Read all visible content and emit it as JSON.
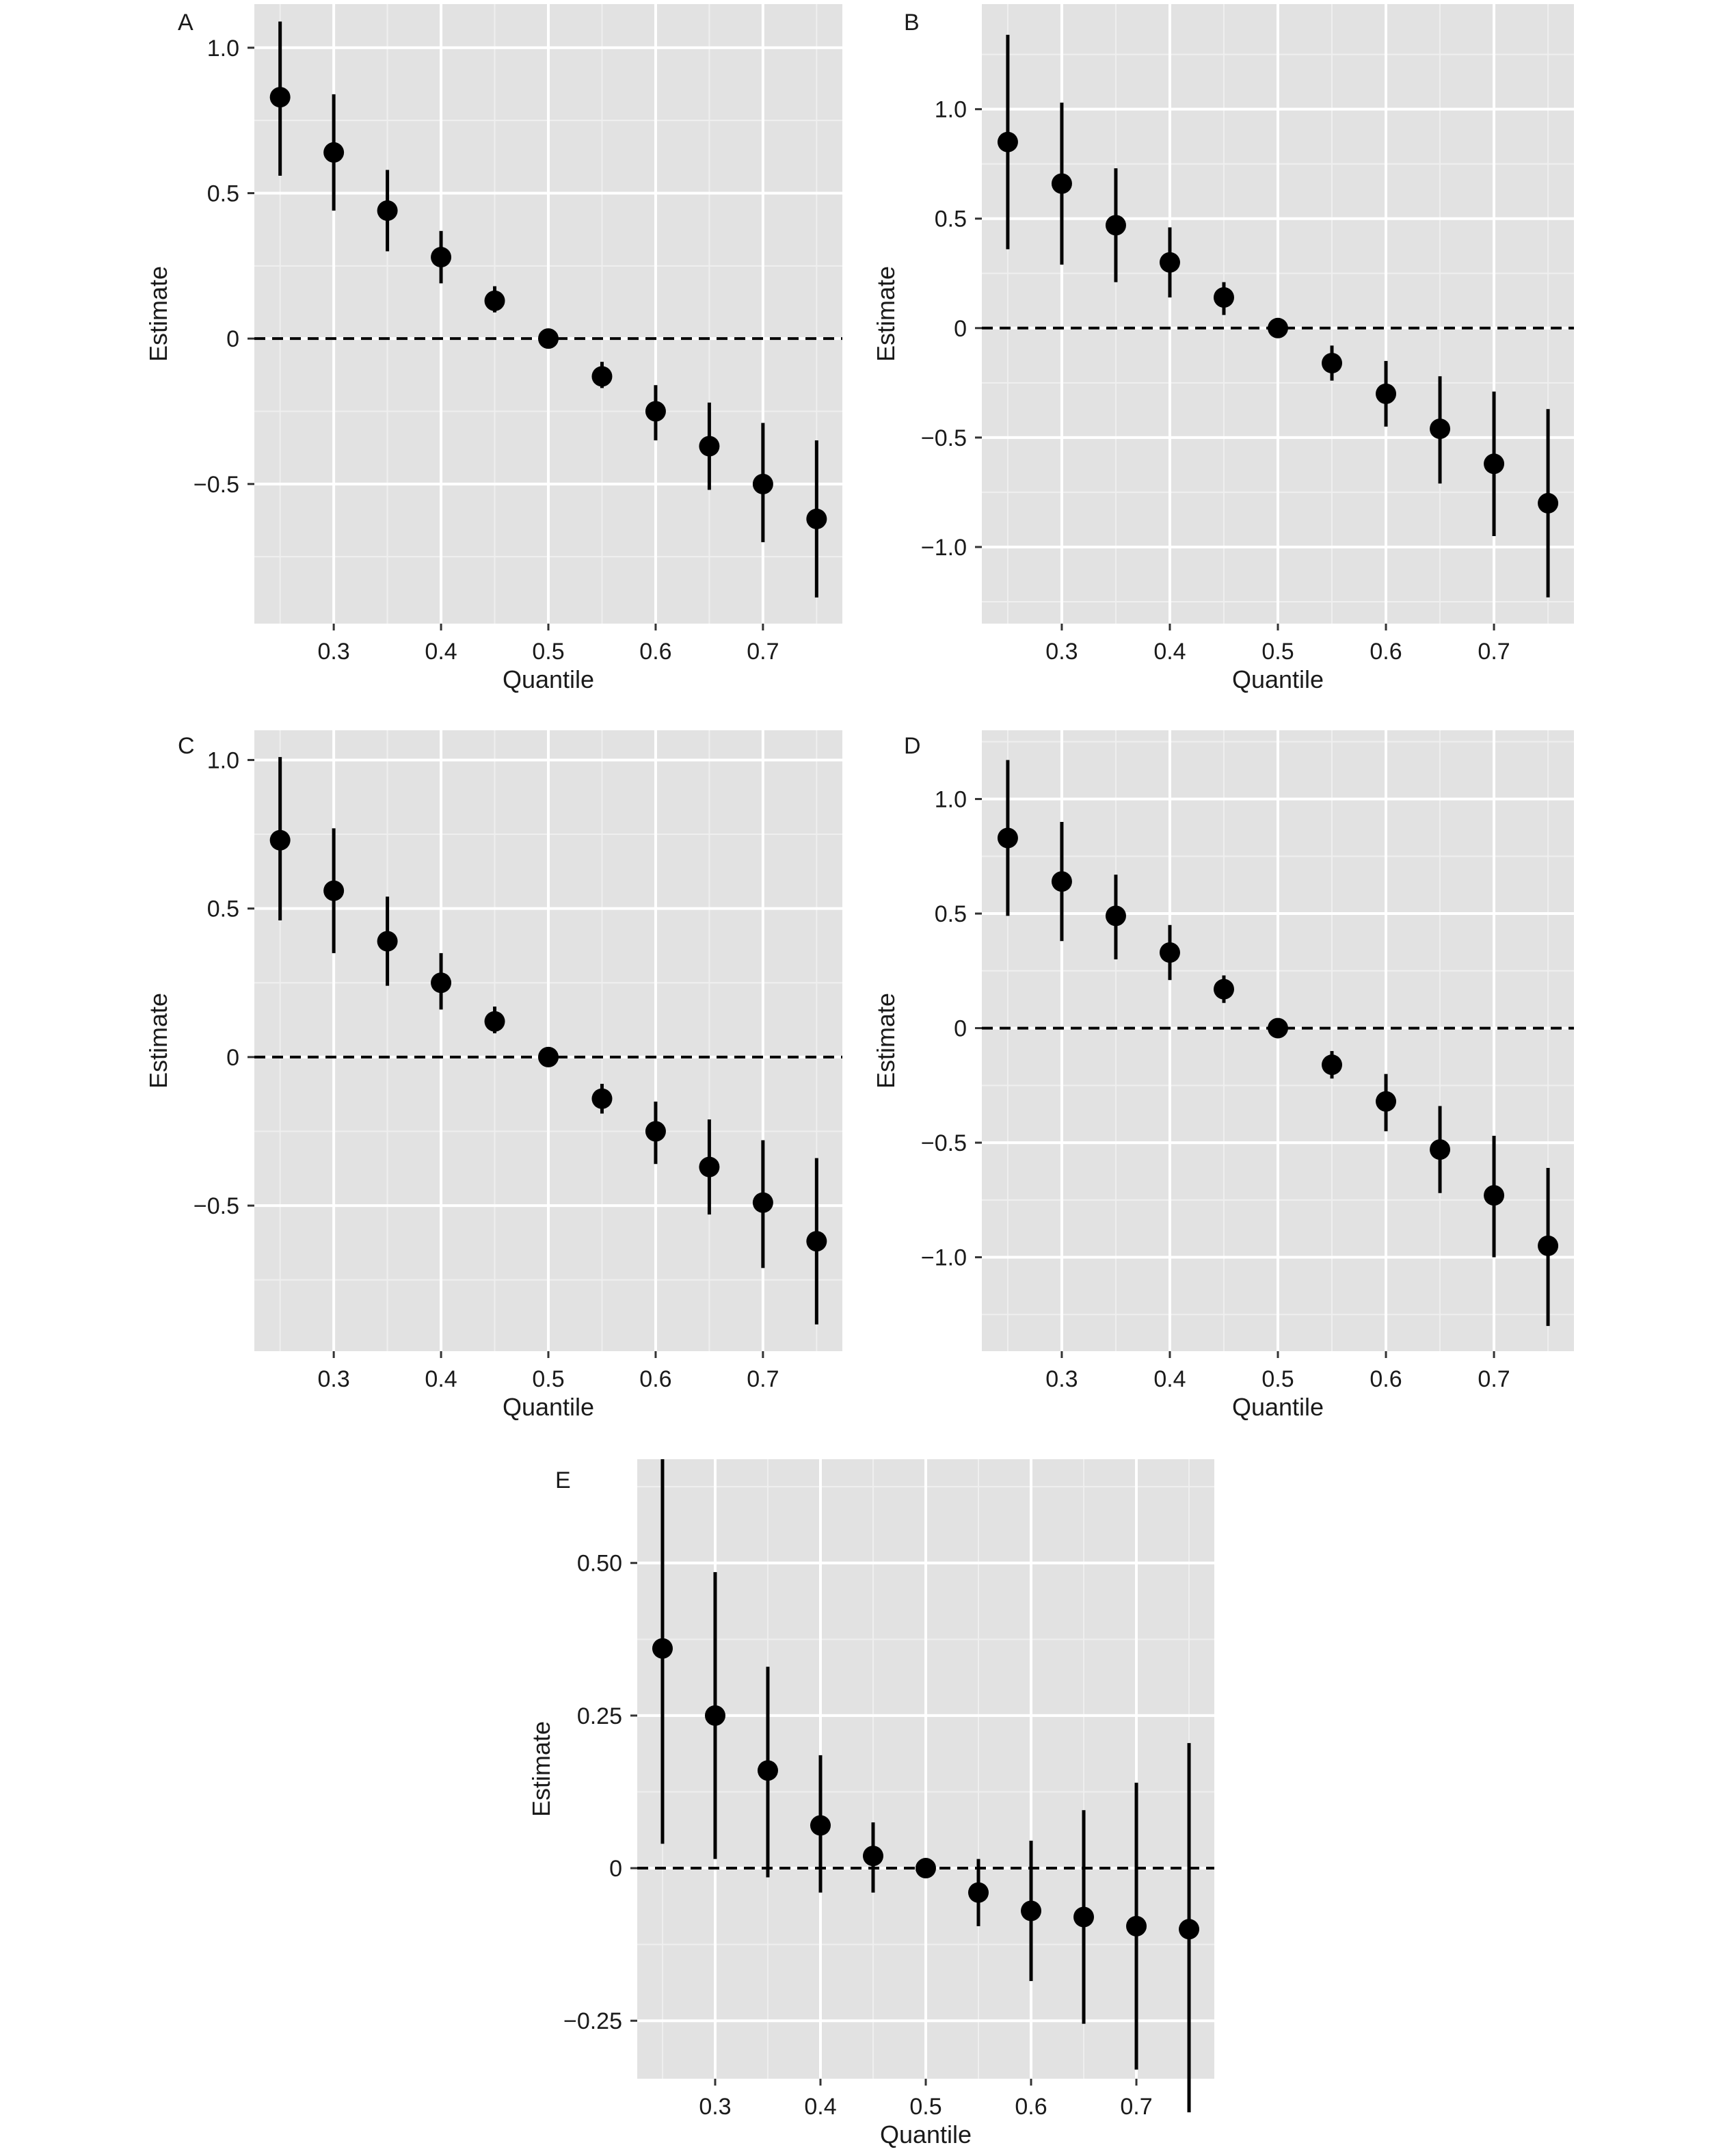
{
  "chart_data": [
    {
      "panel": "A",
      "type": "scatter",
      "title": "",
      "xlabel": "Quantile",
      "ylabel": "Estimate",
      "xlim": [
        0.226,
        0.774
      ],
      "ylim": [
        -0.98,
        1.15
      ],
      "xticks": [
        0.3,
        0.4,
        0.5,
        0.6,
        0.7
      ],
      "xtick_labels": [
        "0.3",
        "0.4",
        "0.5",
        "0.6",
        "0.7"
      ],
      "yticks": [
        -0.5,
        0,
        0.5,
        1.0
      ],
      "ytick_labels": [
        "−0.5",
        "0",
        "0.5",
        "1.0"
      ],
      "reference_line": 0,
      "grid": true,
      "series": [
        {
          "x": [
            0.25,
            0.3,
            0.35,
            0.4,
            0.45,
            0.5,
            0.55,
            0.6,
            0.65,
            0.7,
            0.75
          ],
          "y": [
            0.83,
            0.64,
            0.44,
            0.28,
            0.13,
            0.0,
            -0.13,
            -0.25,
            -0.37,
            -0.5,
            -0.62
          ],
          "lower": [
            0.56,
            0.44,
            0.3,
            0.19,
            0.09,
            0.0,
            -0.17,
            -0.35,
            -0.52,
            -0.7,
            -0.89
          ],
          "upper": [
            1.09,
            0.84,
            0.58,
            0.37,
            0.18,
            0.0,
            -0.08,
            -0.16,
            -0.22,
            -0.29,
            -0.35
          ]
        }
      ]
    },
    {
      "panel": "B",
      "type": "scatter",
      "title": "",
      "xlabel": "Quantile",
      "ylabel": "Estimate",
      "xlim": [
        0.226,
        0.774
      ],
      "ylim": [
        -1.35,
        1.48
      ],
      "xticks": [
        0.3,
        0.4,
        0.5,
        0.6,
        0.7
      ],
      "xtick_labels": [
        "0.3",
        "0.4",
        "0.5",
        "0.6",
        "0.7"
      ],
      "yticks": [
        -1.0,
        -0.5,
        0,
        0.5,
        1.0
      ],
      "ytick_labels": [
        "−1.0",
        "−0.5",
        "0",
        "0.5",
        "1.0"
      ],
      "reference_line": 0,
      "grid": true,
      "series": [
        {
          "x": [
            0.25,
            0.3,
            0.35,
            0.4,
            0.45,
            0.5,
            0.55,
            0.6,
            0.65,
            0.7,
            0.75
          ],
          "y": [
            0.85,
            0.66,
            0.47,
            0.3,
            0.14,
            0.0,
            -0.16,
            -0.3,
            -0.46,
            -0.62,
            -0.8
          ],
          "lower": [
            0.36,
            0.29,
            0.21,
            0.14,
            0.06,
            0.0,
            -0.24,
            -0.45,
            -0.71,
            -0.95,
            -1.23
          ],
          "upper": [
            1.34,
            1.03,
            0.73,
            0.46,
            0.21,
            0.0,
            -0.08,
            -0.15,
            -0.22,
            -0.29,
            -0.37
          ]
        }
      ]
    },
    {
      "panel": "C",
      "type": "scatter",
      "title": "",
      "xlabel": "Quantile",
      "ylabel": "Estimate",
      "xlim": [
        0.226,
        0.774
      ],
      "ylim": [
        -0.99,
        1.1
      ],
      "xticks": [
        0.3,
        0.4,
        0.5,
        0.6,
        0.7
      ],
      "xtick_labels": [
        "0.3",
        "0.4",
        "0.5",
        "0.6",
        "0.7"
      ],
      "yticks": [
        -0.5,
        0,
        0.5,
        1.0
      ],
      "ytick_labels": [
        "−0.5",
        "0",
        "0.5",
        "1.0"
      ],
      "reference_line": 0,
      "grid": true,
      "series": [
        {
          "x": [
            0.25,
            0.3,
            0.35,
            0.4,
            0.45,
            0.5,
            0.55,
            0.6,
            0.65,
            0.7,
            0.75
          ],
          "y": [
            0.73,
            0.56,
            0.39,
            0.25,
            0.12,
            0.0,
            -0.14,
            -0.25,
            -0.37,
            -0.49,
            -0.62
          ],
          "lower": [
            0.46,
            0.35,
            0.24,
            0.16,
            0.08,
            0.0,
            -0.19,
            -0.36,
            -0.53,
            -0.71,
            -0.9
          ],
          "upper": [
            1.01,
            0.77,
            0.54,
            0.35,
            0.17,
            0.0,
            -0.09,
            -0.15,
            -0.21,
            -0.28,
            -0.34
          ]
        }
      ]
    },
    {
      "panel": "D",
      "type": "scatter",
      "title": "",
      "xlabel": "Quantile",
      "ylabel": "Estimate",
      "xlim": [
        0.226,
        0.774
      ],
      "ylim": [
        -1.41,
        1.3
      ],
      "xticks": [
        0.3,
        0.4,
        0.5,
        0.6,
        0.7
      ],
      "xtick_labels": [
        "0.3",
        "0.4",
        "0.5",
        "0.6",
        "0.7"
      ],
      "yticks": [
        -1.0,
        -0.5,
        0,
        0.5,
        1.0
      ],
      "ytick_labels": [
        "−1.0",
        "−0.5",
        "0",
        "0.5",
        "1.0"
      ],
      "reference_line": 0,
      "grid": true,
      "series": [
        {
          "x": [
            0.25,
            0.3,
            0.35,
            0.4,
            0.45,
            0.5,
            0.55,
            0.6,
            0.65,
            0.7,
            0.75
          ],
          "y": [
            0.83,
            0.64,
            0.49,
            0.33,
            0.17,
            0.0,
            -0.16,
            -0.32,
            -0.53,
            -0.73,
            -0.95
          ],
          "lower": [
            0.49,
            0.38,
            0.3,
            0.21,
            0.11,
            0.0,
            -0.22,
            -0.45,
            -0.72,
            -1.0,
            -1.3
          ],
          "upper": [
            1.17,
            0.9,
            0.67,
            0.45,
            0.23,
            0.0,
            -0.1,
            -0.2,
            -0.34,
            -0.47,
            -0.61
          ]
        }
      ]
    },
    {
      "panel": "E",
      "type": "scatter",
      "title": "",
      "xlabel": "Quantile",
      "ylabel": "Estimate",
      "xlim": [
        0.226,
        0.774
      ],
      "ylim": [
        -0.345,
        0.67
      ],
      "xticks": [
        0.3,
        0.4,
        0.5,
        0.6,
        0.7
      ],
      "xtick_labels": [
        "0.3",
        "0.4",
        "0.5",
        "0.6",
        "0.7"
      ],
      "yticks": [
        -0.25,
        0,
        0.25,
        0.5
      ],
      "ytick_labels": [
        "−0.25",
        "0",
        "0.25",
        "0.50"
      ],
      "reference_line": 0,
      "grid": true,
      "series": [
        {
          "x": [
            0.25,
            0.3,
            0.35,
            0.4,
            0.45,
            0.5,
            0.55,
            0.6,
            0.65,
            0.7,
            0.75
          ],
          "y": [
            0.36,
            0.25,
            0.16,
            0.07,
            0.02,
            0.0,
            -0.04,
            -0.07,
            -0.08,
            -0.095,
            -0.1
          ],
          "lower": [
            0.04,
            0.015,
            -0.015,
            -0.04,
            -0.04,
            0.0,
            -0.095,
            -0.185,
            -0.255,
            -0.33,
            -0.4
          ],
          "upper": [
            0.67,
            0.485,
            0.33,
            0.185,
            0.075,
            0.0,
            0.015,
            0.045,
            0.095,
            0.14,
            0.205
          ]
        }
      ]
    }
  ]
}
